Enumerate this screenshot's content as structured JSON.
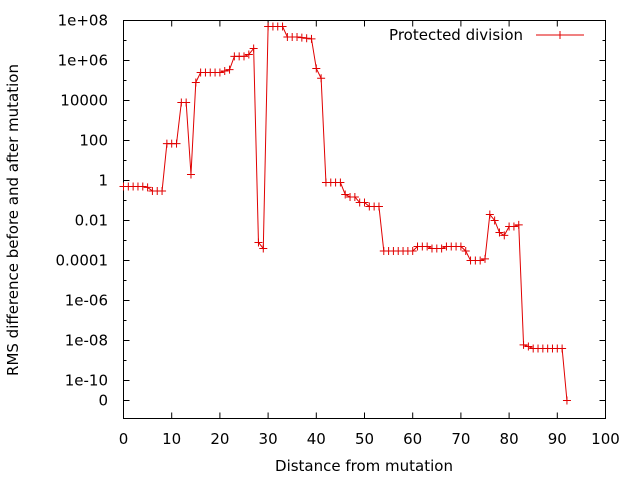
{
  "chart_data": {
    "type": "line",
    "title": "",
    "xlabel": "Distance from mutation",
    "ylabel": "RMS difference before and after mutation",
    "xlim": [
      0,
      100
    ],
    "ylim": [
      "0",
      "1e+08"
    ],
    "yscale": "log (with 0 marked below 1e-10)",
    "grid": false,
    "legend_position": "top-right",
    "x_ticks": [
      "0",
      "10",
      "20",
      "30",
      "40",
      "50",
      "60",
      "70",
      "80",
      "90",
      "100"
    ],
    "y_ticks": [
      "1e+08",
      "1e+06",
      "10000",
      "100",
      "1",
      "0.01",
      "0.0001",
      "1e-06",
      "1e-08",
      "1e-10",
      "0"
    ],
    "series": [
      {
        "name": "Protected division",
        "color": "#e00000",
        "marker": "+",
        "x": [
          0,
          1,
          2,
          3,
          4,
          5,
          6,
          7,
          8,
          9,
          10,
          11,
          12,
          13,
          14,
          15,
          16,
          17,
          18,
          19,
          20,
          21,
          22,
          23,
          24,
          25,
          26,
          27,
          28,
          29,
          30,
          31,
          32,
          33,
          34,
          35,
          36,
          37,
          38,
          39,
          40,
          41,
          42,
          43,
          44,
          45,
          46,
          47,
          48,
          49,
          50,
          51,
          52,
          53,
          54,
          55,
          56,
          57,
          58,
          59,
          60,
          61,
          62,
          63,
          64,
          65,
          66,
          67,
          68,
          69,
          70,
          71,
          72,
          73,
          74,
          75,
          76,
          77,
          78,
          79,
          80,
          81,
          82,
          83,
          84,
          85,
          86,
          87,
          88,
          89,
          90,
          91,
          92
        ],
        "values": [
          0.5,
          0.5,
          0.5,
          0.5,
          0.5,
          0.45,
          0.3,
          0.3,
          0.3,
          70,
          70,
          70,
          8000,
          8000,
          2,
          80000,
          250000,
          250000,
          250000,
          250000,
          250000,
          300000,
          350000,
          1600000,
          1600000,
          1600000,
          2000000,
          4000000,
          0.0008,
          0.0004,
          50000000,
          50000000,
          50000000,
          50000000,
          15000000,
          15000000,
          15000000,
          14000000,
          13000000,
          12000000,
          400000,
          130000,
          0.8,
          0.8,
          0.8,
          0.8,
          0.2,
          0.15,
          0.15,
          0.08,
          0.08,
          0.05,
          0.05,
          0.05,
          0.0003,
          0.0003,
          0.0003,
          0.0003,
          0.0003,
          0.0003,
          0.0003,
          0.0005,
          0.0005,
          0.0005,
          0.0004,
          0.0004,
          0.0004,
          0.0005,
          0.0005,
          0.0005,
          0.0005,
          0.0003,
          0.0001,
          0.0001,
          0.0001,
          0.00012,
          0.02,
          0.01,
          0.0025,
          0.0018,
          0.005,
          0.005,
          0.006,
          6e-09,
          5e-09,
          4e-09,
          4e-09,
          4e-09,
          4e-09,
          4e-09,
          4e-09,
          4e-09,
          0
        ]
      }
    ]
  }
}
